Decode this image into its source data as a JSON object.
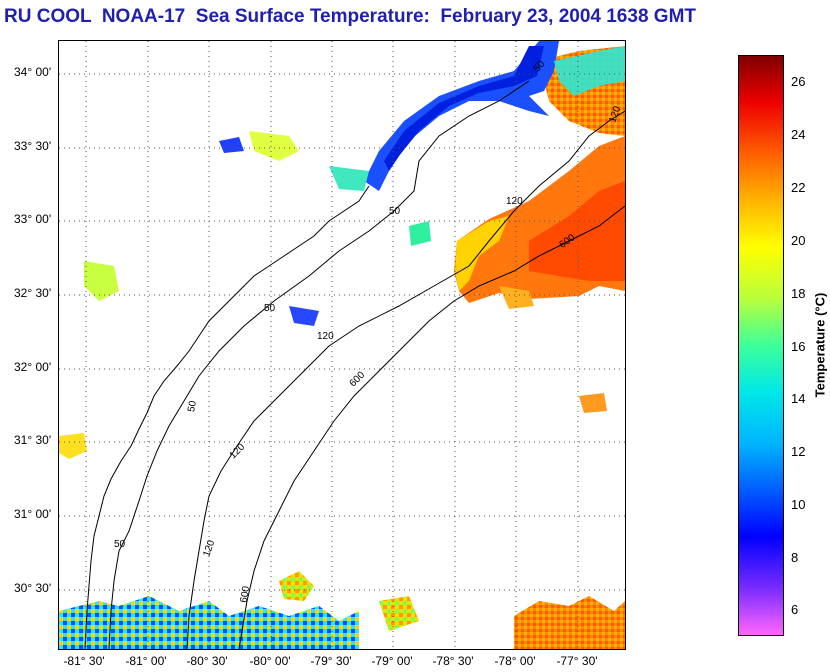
{
  "title": "RU COOL  NOAA-17  Sea Surface Temperature:  February 23, 2004 1638 GMT",
  "map": {
    "lat_ticks": [
      "34° 00'",
      "33° 30'",
      "33° 00'",
      "32° 30'",
      "32° 00'",
      "31° 30'",
      "31° 00'",
      "30° 30'"
    ],
    "lon_ticks": [
      "-81° 30'",
      "-81° 00'",
      "-80° 30'",
      "-80° 00'",
      "-79° 30'",
      "-79° 00'",
      "-78° 30'",
      "-78° 00'",
      "-77° 30'"
    ],
    "contour_labels": [
      "50",
      "120",
      "600",
      "50",
      "120",
      "50",
      "120",
      "600",
      "50",
      "120",
      "50",
      "120",
      "600"
    ]
  },
  "colorbar": {
    "title": "Temperature (°C)",
    "ticks": [
      "26",
      "24",
      "22",
      "20",
      "18",
      "16",
      "14",
      "12",
      "10",
      "8",
      "6"
    ],
    "min": 5,
    "max": 27,
    "colors": [
      "#ff66ff",
      "#7a2cff",
      "#0000ff",
      "#005cff",
      "#00b4ff",
      "#00e8e8",
      "#3dff9a",
      "#b8ff3c",
      "#ffff00",
      "#ffb400",
      "#ff6000",
      "#ee0000",
      "#800000"
    ]
  }
}
